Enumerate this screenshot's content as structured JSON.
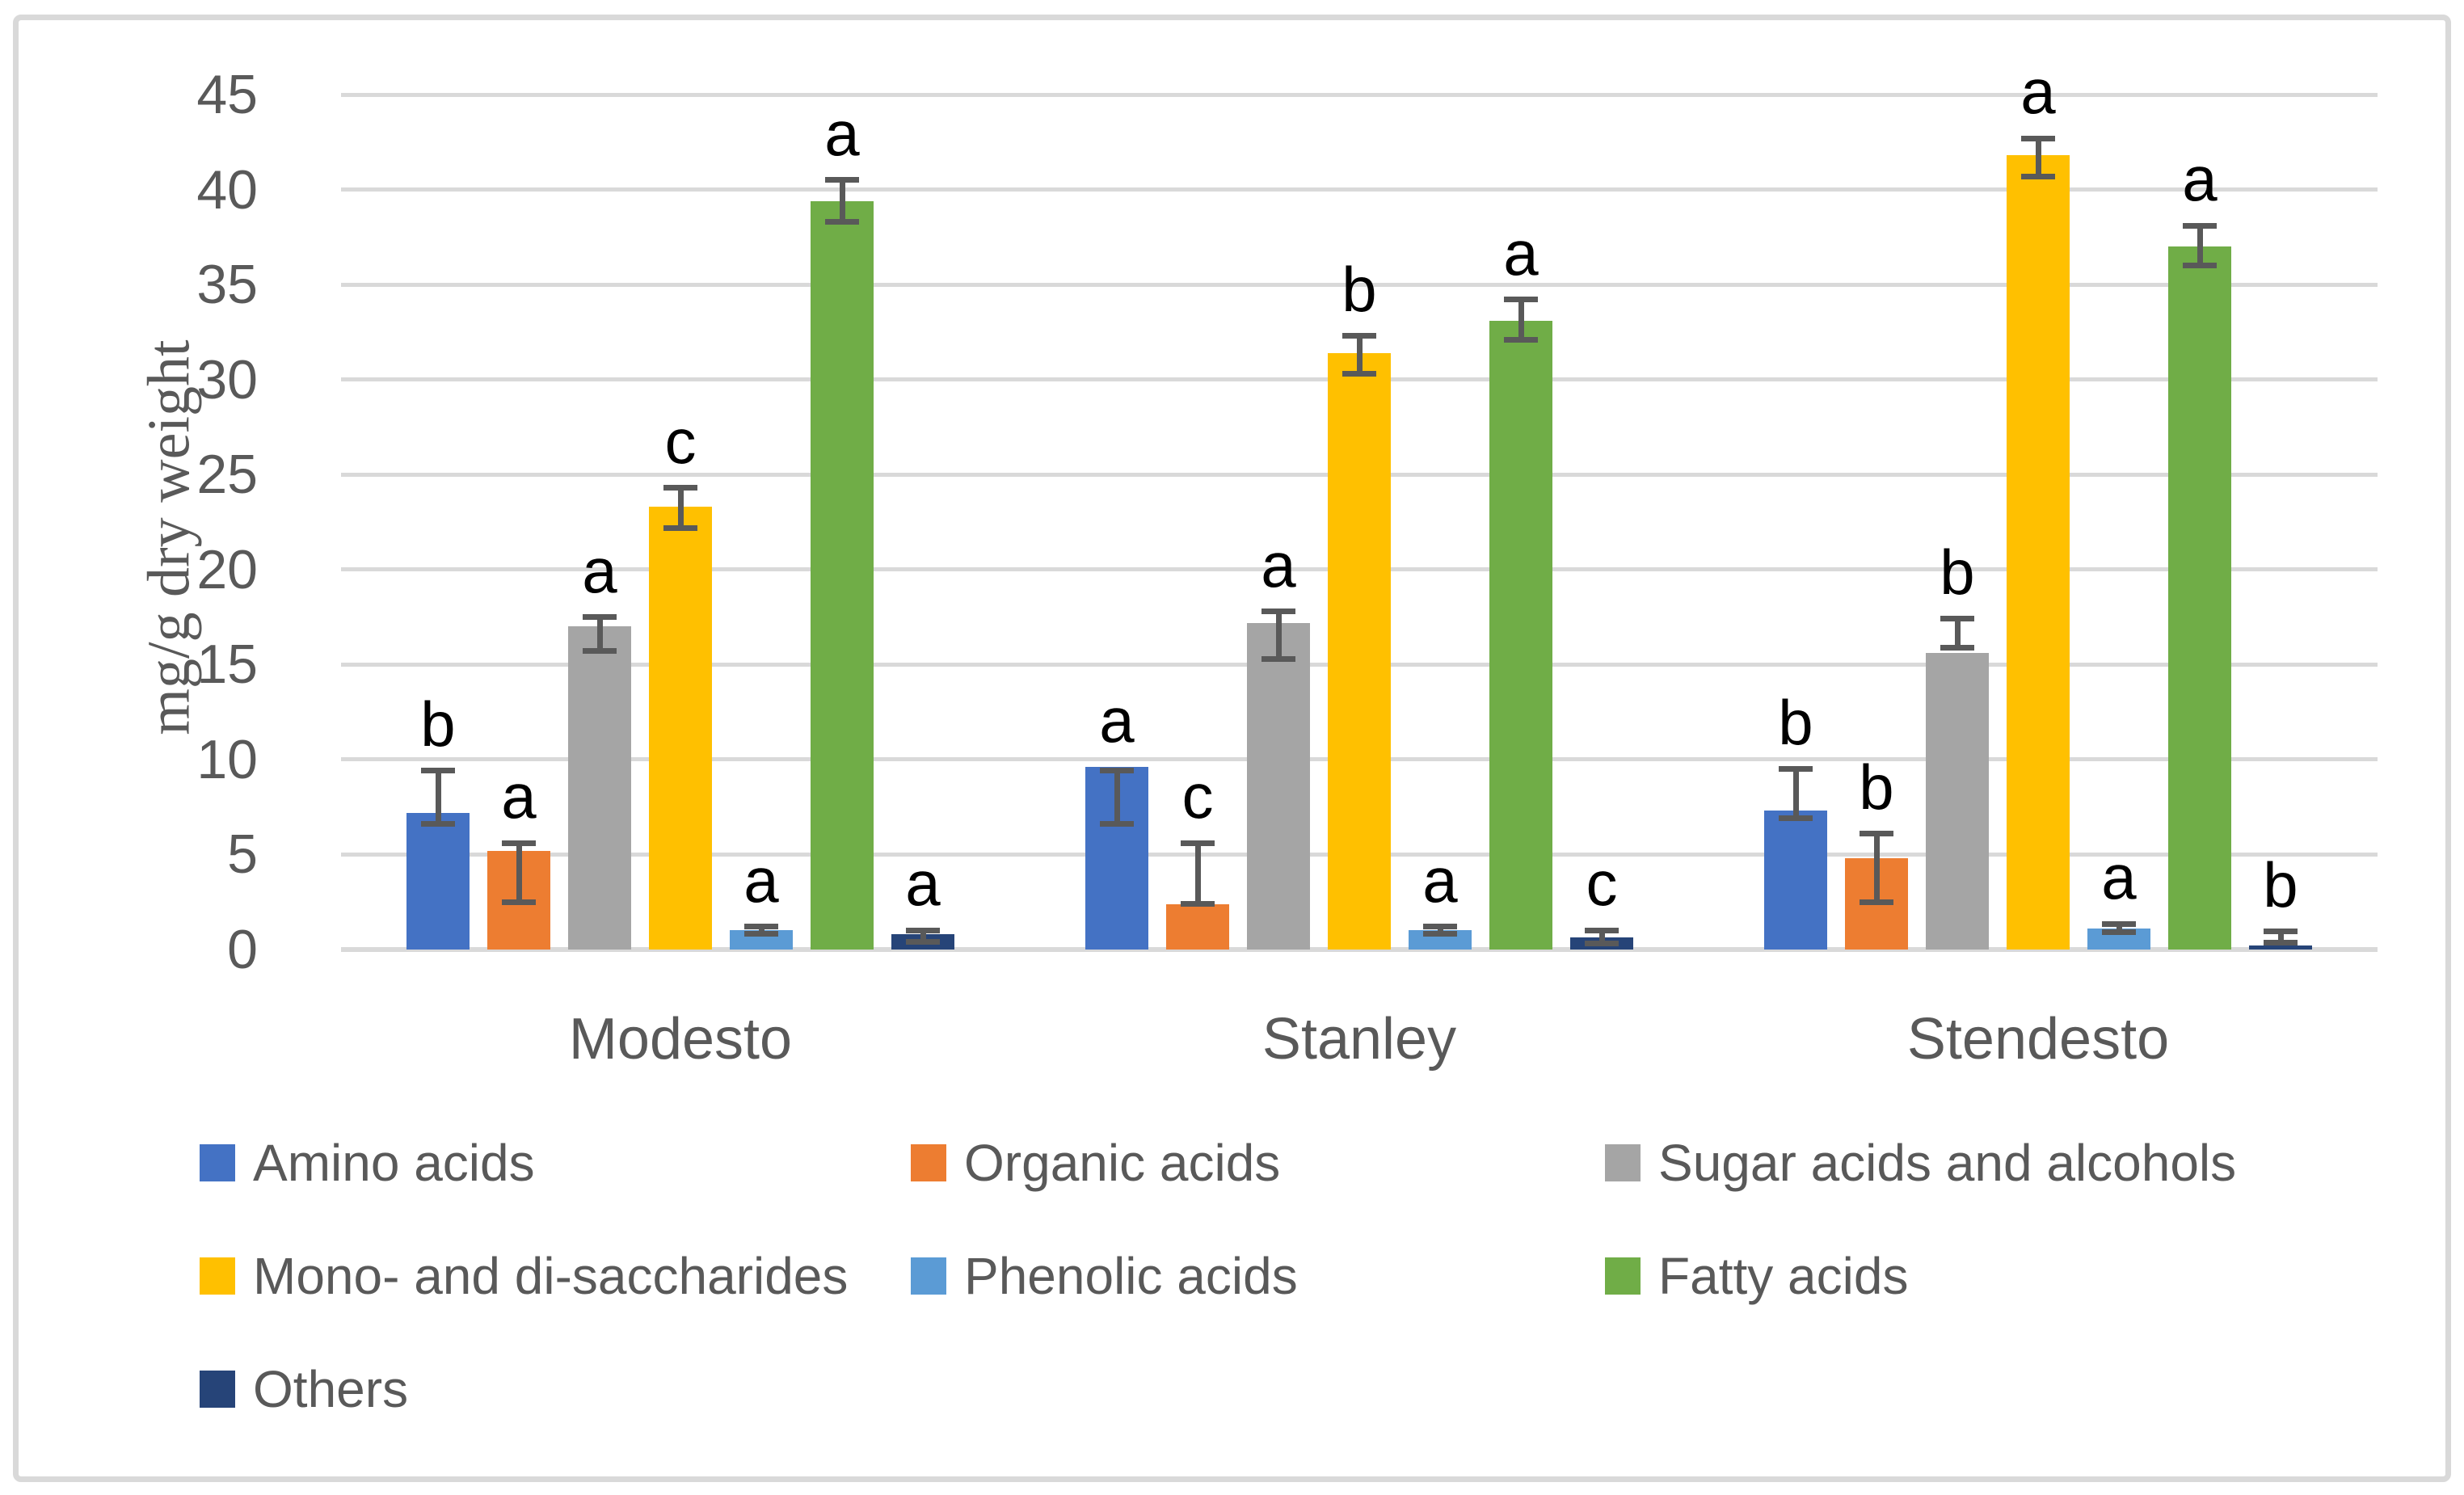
{
  "chart_data": {
    "type": "bar",
    "title": "",
    "xlabel": "",
    "ylabel": "mg/g dry weight",
    "ylim": [
      0,
      45
    ],
    "yticks": [
      0,
      5,
      10,
      15,
      20,
      25,
      30,
      35,
      40,
      45
    ],
    "grid": "horizontal",
    "legend_position": "bottom",
    "categories": [
      "Modesto",
      "Stanley",
      "Stendesto"
    ],
    "series": [
      {
        "name": "Amino acids",
        "color": "#4472C4",
        "values": [
          7.2,
          9.6,
          7.3
        ],
        "err_lo": [
          6.6,
          6.6,
          6.9
        ],
        "err_hi": [
          9.4,
          9.4,
          9.5
        ],
        "letters": [
          "b",
          "a",
          "b"
        ]
      },
      {
        "name": "Organic acids",
        "color": "#ED7D31",
        "values": [
          5.2,
          2.4,
          4.8
        ],
        "err_lo": [
          2.5,
          2.4,
          2.5
        ],
        "err_hi": [
          5.6,
          5.6,
          6.1
        ],
        "letters": [
          "a",
          "c",
          "b"
        ]
      },
      {
        "name": "Sugar acids and alcohols",
        "color": "#A5A5A5",
        "values": [
          17.0,
          17.2,
          15.6
        ],
        "err_lo": [
          15.7,
          15.3,
          15.9
        ],
        "err_hi": [
          17.5,
          17.8,
          17.4
        ],
        "letters": [
          "a",
          "a",
          "b"
        ]
      },
      {
        "name": "Mono- and di-saccharides",
        "color": "#FFC000",
        "values": [
          23.3,
          31.4,
          41.8
        ],
        "err_lo": [
          22.2,
          30.3,
          40.7
        ],
        "err_hi": [
          24.3,
          32.3,
          42.7
        ],
        "letters": [
          "c",
          "b",
          "a"
        ]
      },
      {
        "name": "Phenolic acids",
        "color": "#5B9BD5",
        "values": [
          1.0,
          1.0,
          1.1
        ],
        "err_lo": [
          0.85,
          0.85,
          0.9
        ],
        "err_hi": [
          1.2,
          1.2,
          1.35
        ],
        "letters": [
          "a",
          "a",
          "a"
        ]
      },
      {
        "name": "Fatty acids",
        "color": "#70AD47",
        "values": [
          39.4,
          33.1,
          37.0
        ],
        "err_lo": [
          38.3,
          32.1,
          36.0
        ],
        "err_hi": [
          40.5,
          34.2,
          38.1
        ],
        "letters": [
          "a",
          "a",
          "a"
        ]
      },
      {
        "name": "Others",
        "color": "#264478",
        "values": [
          0.8,
          0.65,
          0.2
        ],
        "err_lo": [
          0.4,
          0.3,
          0.35
        ],
        "err_hi": [
          1.0,
          1.0,
          0.95
        ],
        "letters": [
          "a",
          "c",
          "b"
        ]
      }
    ],
    "legend_rows": [
      [
        "Amino acids",
        "Organic acids",
        "Sugar acids and alcohols"
      ],
      [
        "Mono- and di-saccharides",
        "Phenolic acids",
        "Fatty acids"
      ],
      [
        "Others"
      ]
    ]
  },
  "colors": {
    "text": "#595959",
    "grid": "#D9D9D9",
    "letter": "#000000",
    "error_bar": "#595959",
    "border": "#D9D9D9",
    "background": "#FFFFFF"
  }
}
